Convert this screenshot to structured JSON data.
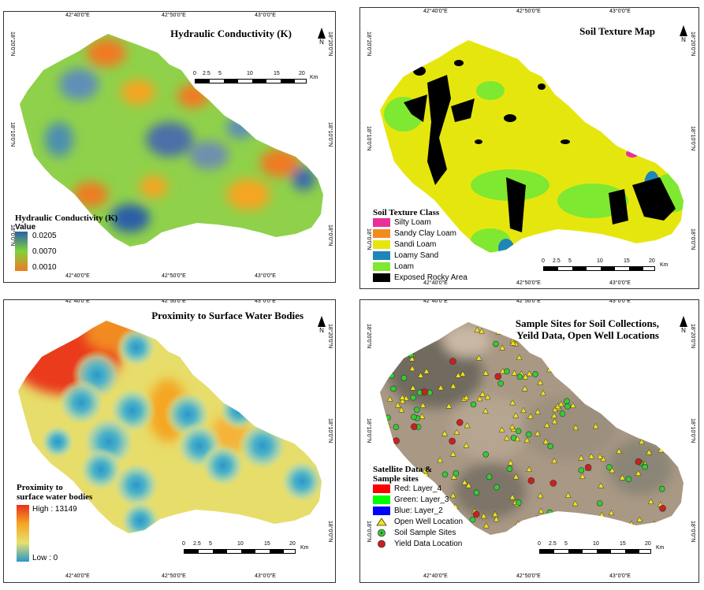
{
  "coords": {
    "lon": [
      "42°40'0\"E",
      "42°50'0\"E",
      "43°0'0\"E"
    ],
    "lat": [
      "18°20'0\"N",
      "18°10'0\"N",
      "18°0'0\"N"
    ]
  },
  "north": "N",
  "scalebar": {
    "ticks": [
      "0",
      "2.5",
      "5",
      "10",
      "15",
      "20"
    ],
    "unit": "Km"
  },
  "panel1": {
    "title": "Hydraulic Conductivity (K)",
    "legend_title": "Hydraulic Conductivity (K)",
    "value_label": "Value",
    "values": [
      "0.0205",
      "0.0070",
      "0.0010"
    ]
  },
  "panel2": {
    "title": "Soil Texture Map",
    "legend_title": "Soil Texture Class",
    "classes": [
      {
        "label": "Silty Loam",
        "color": "#e8309a"
      },
      {
        "label": "Sandy Clay Loam",
        "color": "#f28c1e"
      },
      {
        "label": "Sandi Loam",
        "color": "#e6e60f"
      },
      {
        "label": "Loamy Sand",
        "color": "#1f86b8"
      },
      {
        "label": "Loam",
        "color": "#7fe830"
      },
      {
        "label": "Exposed Rocky Area",
        "color": "#000000"
      }
    ]
  },
  "panel3": {
    "title": "Proximity to Surface Water Bodies",
    "legend_title_1": "Proximity to",
    "legend_title_2": "surface water bodies",
    "high": "High : 13149",
    "low": "Low : 0"
  },
  "panel4": {
    "title_1": "Sample Sites for Soil Collections,",
    "title_2": "Yeild Data, Open Well Locations",
    "legend_title_1": "Satellite Data &",
    "legend_title_2": "Sample sites",
    "bands": [
      {
        "label": "Red:   Layer_4",
        "color": "#ff0000"
      },
      {
        "label": "Green:  Layer_3",
        "color": "#00ff00"
      },
      {
        "label": "Blue:  Layer_2",
        "color": "#0000ff"
      }
    ],
    "symbols": [
      {
        "label": "Open Well Location",
        "icon": "triangle-icon"
      },
      {
        "label": "Soil Sample Sites",
        "icon": "green-circle-icon"
      },
      {
        "label": "Yield Data Location",
        "icon": "red-circle-icon"
      }
    ]
  }
}
